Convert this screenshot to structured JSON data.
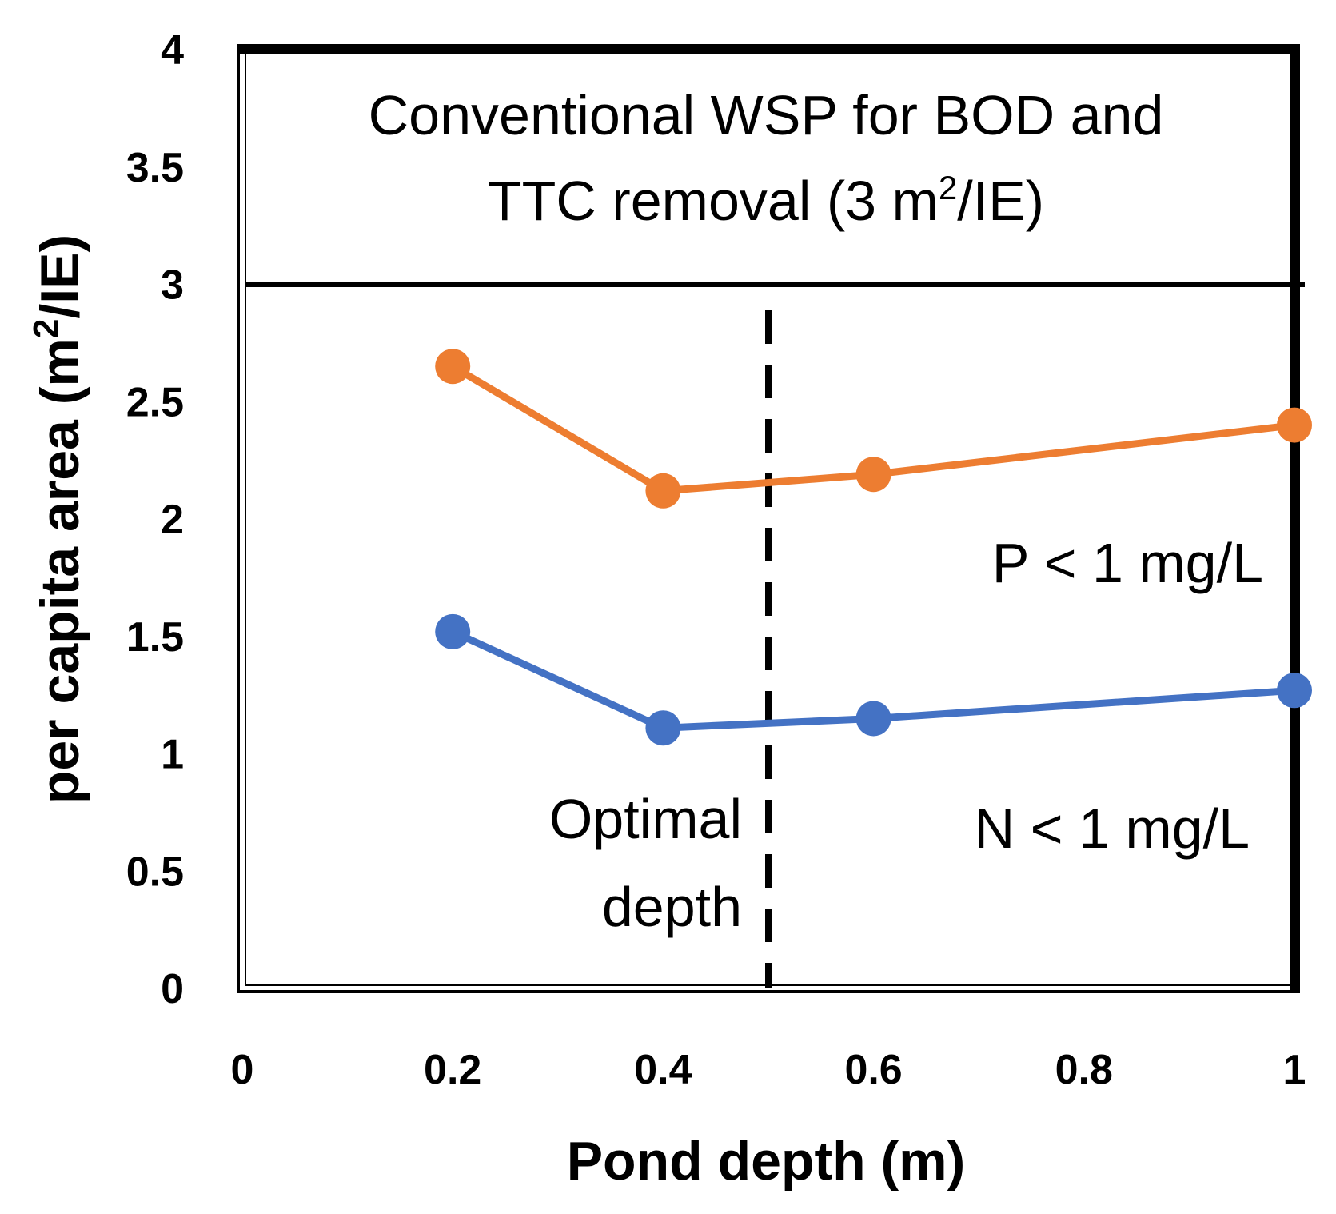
{
  "chart_data": {
    "type": "line",
    "xlabel": "Pond depth (m)",
    "ylabel": {
      "text": "per capita area (m",
      "sup": "2",
      "suffix": "/IE)"
    },
    "xlim": [
      0,
      1
    ],
    "ylim": [
      0,
      4
    ],
    "xticks": [
      "0",
      "0.2",
      "0.4",
      "0.6",
      "0.8",
      "1"
    ],
    "yticks": [
      "0",
      "0.5",
      "1",
      "1.5",
      "2",
      "2.5",
      "3",
      "3.5",
      "4"
    ],
    "series": [
      {
        "name": "P < 1 mg/L",
        "color": "#ED7D31",
        "x": [
          0.2,
          0.4,
          0.6,
          1.0
        ],
        "y": [
          2.65,
          2.12,
          2.19,
          2.4
        ]
      },
      {
        "name": "N < 1 mg/L",
        "color": "#4472C4",
        "x": [
          0.2,
          0.4,
          0.6,
          1.0
        ],
        "y": [
          1.52,
          1.11,
          1.15,
          1.27
        ]
      }
    ],
    "reference_line": {
      "y": 3
    },
    "optimal_depth_line": {
      "x": 0.5
    },
    "annotations": {
      "conventional_line1": "Conventional WSP for BOD and",
      "conventional_line2": {
        "text": "TTC removal (3 m",
        "sup": "2",
        "suffix": "/IE)"
      },
      "optimal_line1": "Optimal",
      "optimal_line2": "depth",
      "p_label": "P < 1 mg/L",
      "n_label": "N < 1 mg/L"
    }
  }
}
